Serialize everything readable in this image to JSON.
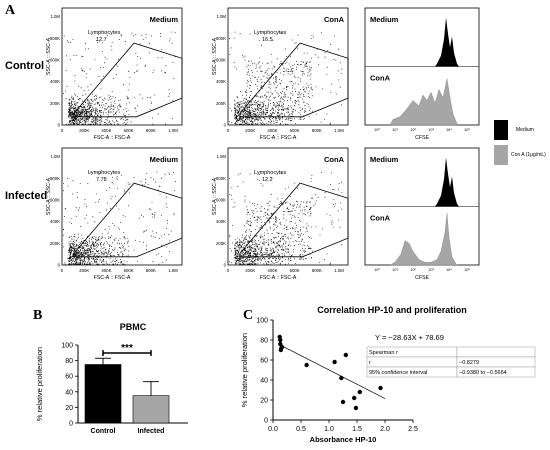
{
  "panel_a": {
    "letter": "A",
    "rows": [
      "Control",
      "Infected"
    ],
    "xticks": [
      "0",
      "200K",
      "400K",
      "600K",
      "800K",
      "1.0M"
    ],
    "yticks": [
      "0",
      "200K",
      "400K",
      "600K",
      "800K",
      "1.0M"
    ],
    "xlabel": "FSC-A :: FSC-A",
    "ylabel": "SSC-A :: SSC-A",
    "gate_label": "Lymphocytes",
    "plots": [
      {
        "condition": "Medium",
        "value": "12.7"
      },
      {
        "condition": "ConA",
        "value": "16.5"
      },
      {
        "condition": "Medium",
        "value": "7.78"
      },
      {
        "condition": "ConA",
        "value": "12.2"
      }
    ],
    "histograms": {
      "medium_label": "Medium",
      "cona_label": "ConA",
      "xlabel": "CFSE",
      "xticks": [
        "10⁰",
        "10¹",
        "10²",
        "10³",
        "10⁴",
        "10⁵"
      ]
    },
    "legend": [
      {
        "label": "Medium",
        "color": "#000000"
      },
      {
        "label": "Con A (1μg/mL)",
        "color": "#a6a6a6"
      }
    ]
  },
  "panel_b": {
    "letter": "B",
    "significance": "***"
  },
  "panel_c": {
    "letter": "C",
    "equation": "Y = −28.63X + 78.69",
    "stats_table": [
      [
        "Spearman r",
        ""
      ],
      [
        "r",
        "−0.8279"
      ],
      [
        "95% confidence interval",
        "−0.9380 to −0.5664"
      ]
    ]
  },
  "chart_data": [
    {
      "type": "bar",
      "title": "PBMC",
      "categories": [
        "Control",
        "Infected"
      ],
      "values": [
        75,
        35
      ],
      "errors": [
        8,
        18
      ],
      "colors": [
        "#000000",
        "#a6a6a6"
      ],
      "ylabel": "% relative proliferation",
      "xlabel": "",
      "ylim": [
        0,
        100
      ],
      "yticks": [
        0,
        20,
        40,
        60,
        80,
        100
      ]
    },
    {
      "type": "scatter",
      "title": "Correlation HP-10 and proliferation",
      "xlabel": "Absorbance HP-10",
      "ylabel": "% relative proliferation",
      "xlim": [
        0,
        2.5
      ],
      "ylim": [
        0,
        100
      ],
      "xticks": [
        0.0,
        0.5,
        1.0,
        1.5,
        2.0,
        2.5
      ],
      "yticks": [
        0,
        20,
        40,
        60,
        80,
        100
      ],
      "points": [
        [
          0.12,
          83
        ],
        [
          0.13,
          80
        ],
        [
          0.13,
          76
        ],
        [
          0.15,
          72
        ],
        [
          0.14,
          70
        ],
        [
          0.16,
          73
        ],
        [
          0.6,
          55
        ],
        [
          1.1,
          58
        ],
        [
          1.22,
          42
        ],
        [
          1.3,
          65
        ],
        [
          1.25,
          18
        ],
        [
          1.45,
          22
        ],
        [
          1.48,
          12
        ],
        [
          1.55,
          28
        ],
        [
          1.9,
          47
        ],
        [
          1.92,
          32
        ]
      ],
      "fit": {
        "slope": -28.63,
        "intercept": 78.69
      }
    }
  ]
}
